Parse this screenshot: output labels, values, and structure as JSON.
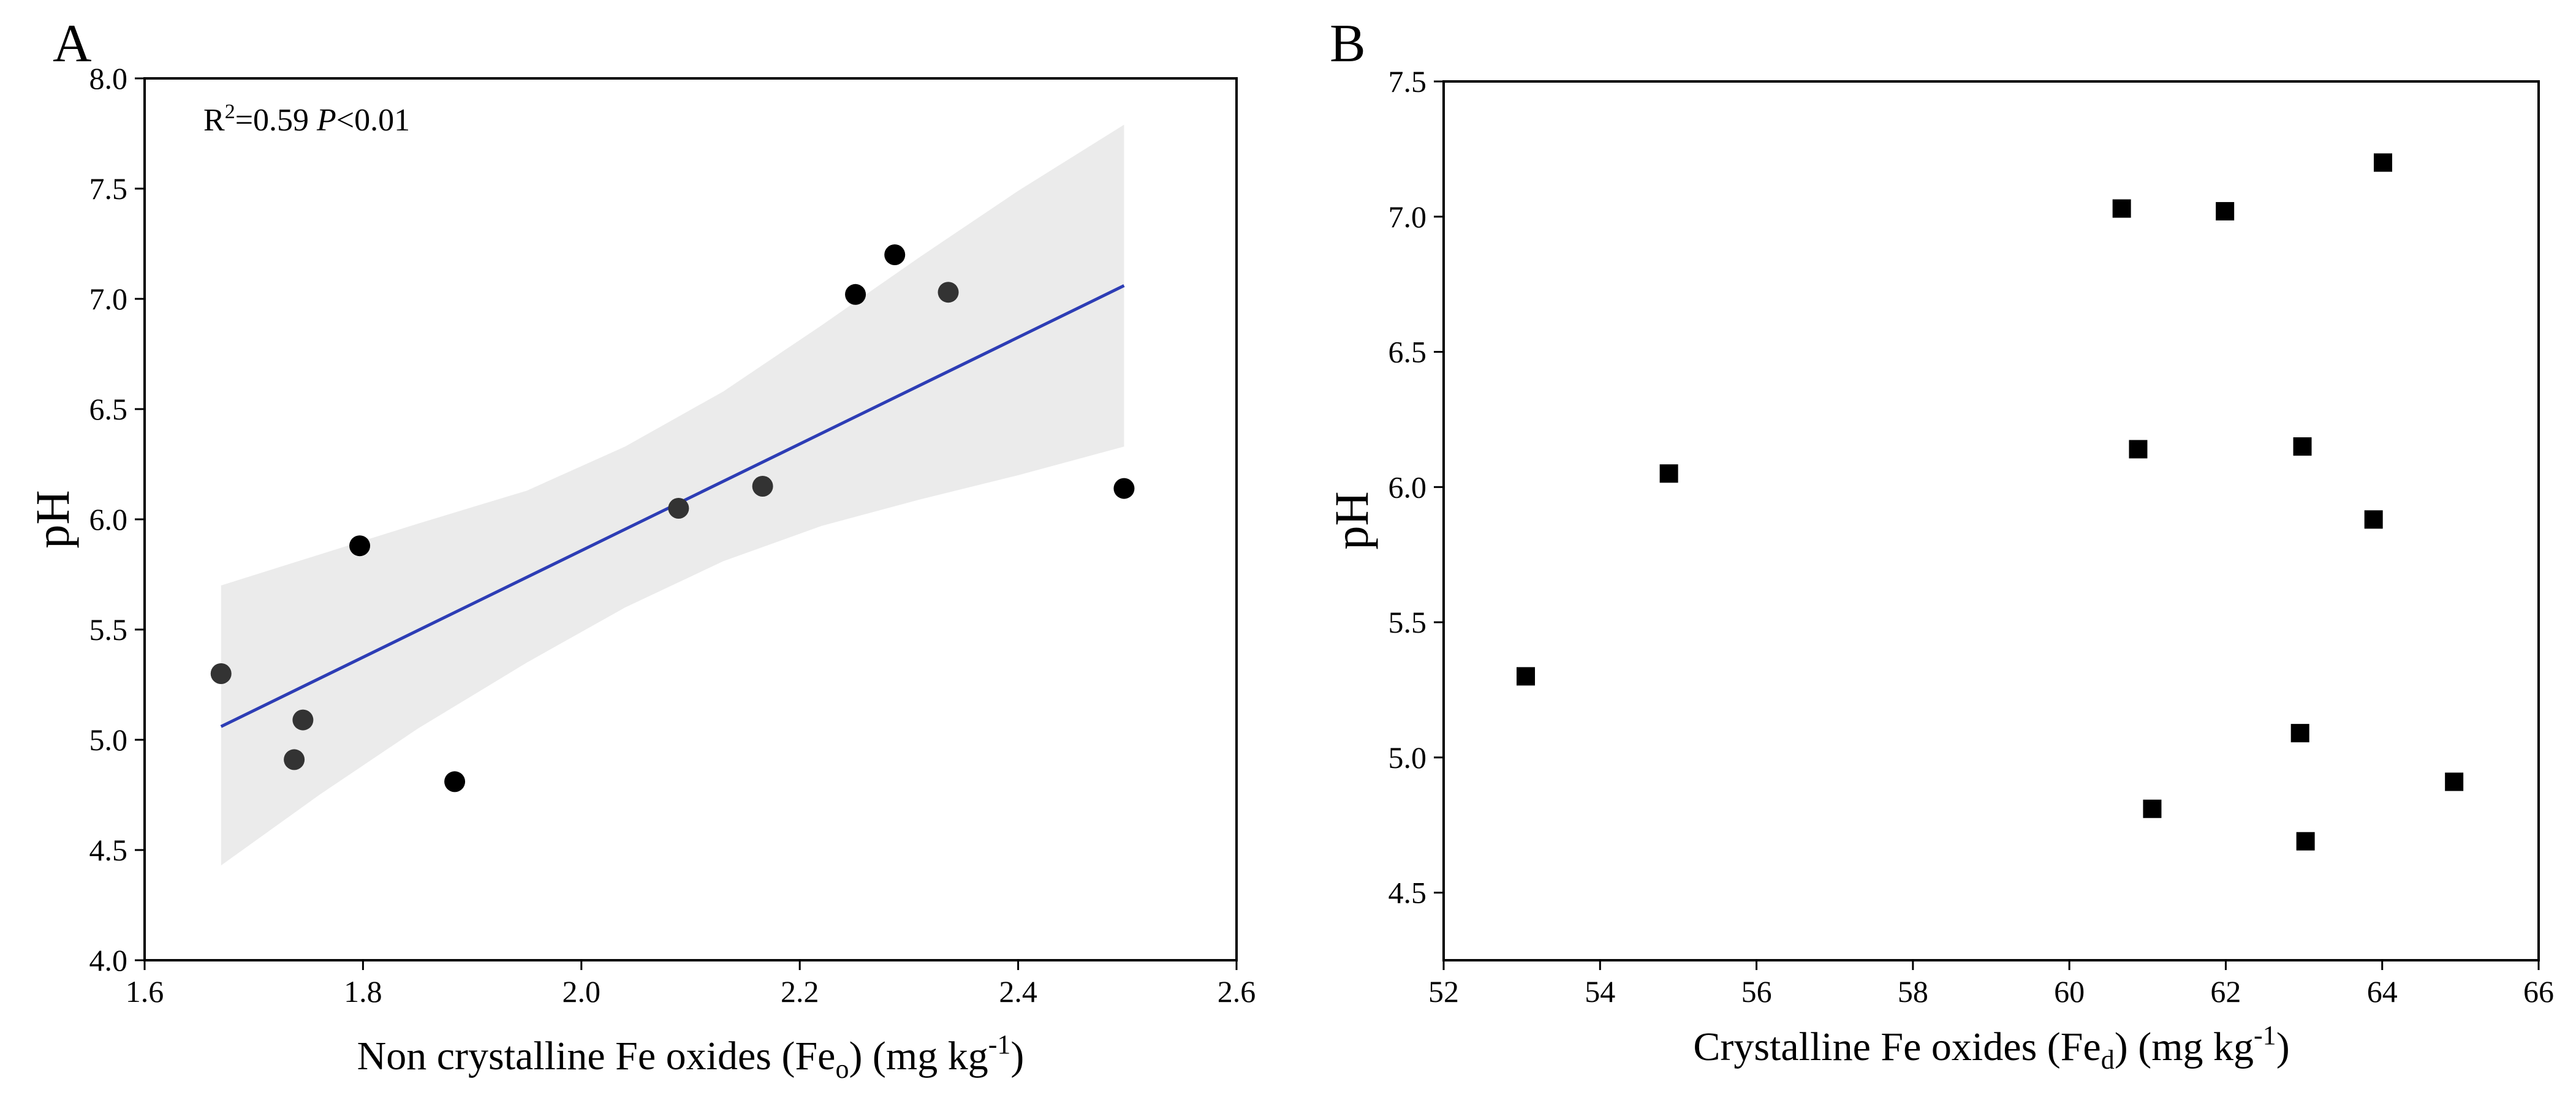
{
  "chart_data": [
    {
      "panel": "A",
      "type": "scatter",
      "annotation": {
        "r2_text": "R",
        "r2_sup": "2",
        "r2_value": "=0.59 ",
        "p_label": "P",
        "p_value": "<0.01"
      },
      "xlabel": {
        "main": "Non crystalline Fe oxides (Fe",
        "sub": "o",
        "tail": ") (mg kg",
        "sup": "-1",
        "end": ")"
      },
      "ylabel": "pH",
      "xlim": [
        1.6,
        2.6
      ],
      "ylim": [
        4.0,
        8.0
      ],
      "xticks": [
        "1.6",
        "1.8",
        "2.0",
        "2.2",
        "2.4",
        "2.6"
      ],
      "yticks": [
        "4.0",
        "4.5",
        "5.0",
        "5.5",
        "6.0",
        "6.5",
        "7.0",
        "7.5",
        "8.0"
      ],
      "grid": false,
      "points": [
        {
          "x": 1.67,
          "y": 5.3,
          "color": "#333333"
        },
        {
          "x": 1.737,
          "y": 4.91,
          "color": "#333333"
        },
        {
          "x": 1.745,
          "y": 5.09,
          "color": "#333333"
        },
        {
          "x": 1.797,
          "y": 5.88,
          "color": "#000000"
        },
        {
          "x": 1.884,
          "y": 4.81,
          "color": "#000000"
        },
        {
          "x": 2.089,
          "y": 6.05,
          "color": "#333333"
        },
        {
          "x": 2.166,
          "y": 6.15,
          "color": "#333333"
        },
        {
          "x": 2.251,
          "y": 7.02,
          "color": "#000000"
        },
        {
          "x": 2.287,
          "y": 7.2,
          "color": "#000000"
        },
        {
          "x": 2.336,
          "y": 7.03,
          "color": "#333333"
        },
        {
          "x": 2.497,
          "y": 6.14,
          "color": "#000000"
        }
      ],
      "fit_line": {
        "x": [
          1.67,
          2.497
        ],
        "y": [
          5.06,
          7.06
        ],
        "color": "#2d3db5"
      },
      "confidence_band": {
        "x": [
          1.67,
          1.76,
          1.85,
          1.95,
          2.04,
          2.13,
          2.22,
          2.31,
          2.4,
          2.497
        ],
        "upper": [
          5.7,
          5.84,
          5.98,
          6.13,
          6.33,
          6.58,
          6.88,
          7.19,
          7.49,
          7.79
        ],
        "lower": [
          4.43,
          4.75,
          5.05,
          5.35,
          5.6,
          5.81,
          5.97,
          6.09,
          6.2,
          6.33
        ],
        "color": "#ebebeb"
      }
    },
    {
      "panel": "B",
      "type": "scatter",
      "xlabel": {
        "main": "Crystalline Fe oxides (Fe",
        "sub": "d",
        "tail": ") (mg kg",
        "sup": "-1",
        "end": ")"
      },
      "ylabel": "pH",
      "xlim": [
        52,
        66
      ],
      "ylim": [
        4.25,
        7.5
      ],
      "xticks": [
        "52",
        "54",
        "56",
        "58",
        "60",
        "62",
        "64",
        "66"
      ],
      "yticks": [
        "4.5",
        "5.0",
        "5.5",
        "6.0",
        "6.5",
        "7.0",
        "7.5"
      ],
      "grid": false,
      "marker": "square",
      "points": [
        {
          "x": 53.05,
          "y": 5.3
        },
        {
          "x": 54.88,
          "y": 6.05
        },
        {
          "x": 60.67,
          "y": 7.03
        },
        {
          "x": 60.88,
          "y": 6.14
        },
        {
          "x": 61.06,
          "y": 4.81
        },
        {
          "x": 61.99,
          "y": 7.02
        },
        {
          "x": 62.95,
          "y": 5.09
        },
        {
          "x": 62.98,
          "y": 6.15
        },
        {
          "x": 63.02,
          "y": 4.69
        },
        {
          "x": 63.89,
          "y": 5.88
        },
        {
          "x": 64.01,
          "y": 7.2
        },
        {
          "x": 64.92,
          "y": 4.91
        }
      ]
    }
  ]
}
